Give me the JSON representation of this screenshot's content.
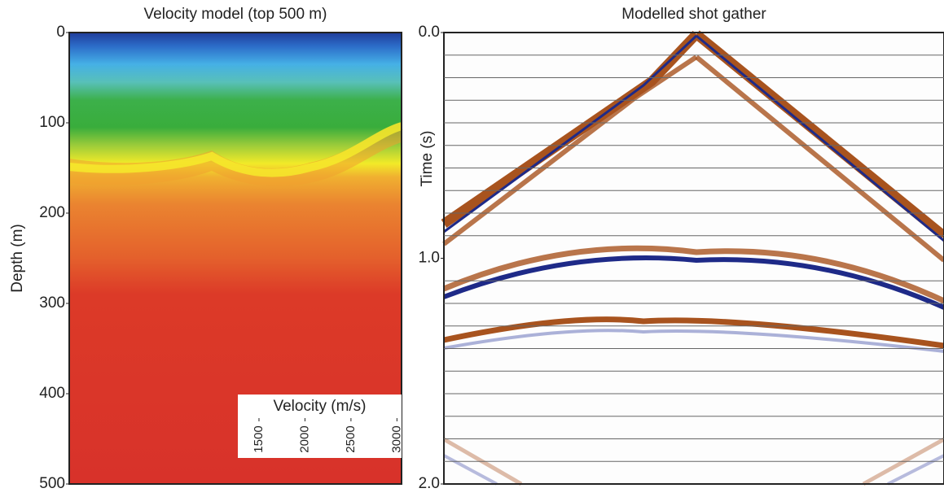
{
  "chart_data": [
    {
      "type": "image",
      "title": "Velocity model (top 500 m)",
      "ylabel": "Depth (m)",
      "ylim": [
        0,
        500
      ],
      "yticks": [
        0,
        100,
        200,
        300,
        400,
        500
      ],
      "colorbar": {
        "label": "Velocity (m/s)",
        "lim": [
          1270,
          3050
        ],
        "ticks": [
          1500,
          2000,
          2500,
          3000
        ]
      }
    },
    {
      "type": "image",
      "title": "Modelled shot gather",
      "ylabel": "Time (s)",
      "ylim": [
        0,
        2.0
      ],
      "yticks": [
        {
          "value": 0,
          "label": "0.0"
        },
        {
          "value": 1,
          "label": "1.0"
        },
        {
          "value": 2,
          "label": "2.0"
        }
      ],
      "grid": true,
      "gridlines": [
        0.1,
        0.2,
        0.3,
        0.4,
        0.5,
        0.6,
        0.7,
        0.8,
        0.9,
        1.1,
        1.2,
        1.3,
        1.4,
        1.5,
        1.6,
        1.7,
        1.8,
        1.9
      ]
    }
  ]
}
